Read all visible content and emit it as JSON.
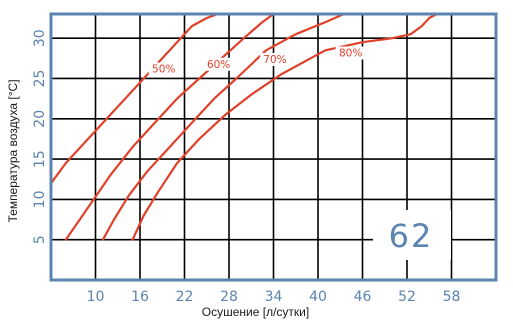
{
  "chart_data": {
    "type": "line",
    "xlabel": "Осушение [л/сутки]",
    "ylabel": "Температура воздуха [°C]",
    "xlim": [
      4,
      64
    ],
    "ylim": [
      0,
      33
    ],
    "x_ticks": [
      "10",
      "16",
      "22",
      "28",
      "34",
      "40",
      "46",
      "52",
      "58"
    ],
    "y_ticks": [
      "5",
      "10",
      "15",
      "20",
      "25",
      "30"
    ],
    "annotation": "62",
    "series_color": "#e0412b",
    "grid_color": "#000000",
    "series": [
      {
        "name": "50%",
        "x": [
          4,
          6,
          9,
          12,
          15,
          18,
          20.5,
          23,
          25,
          26.5
        ],
        "y": [
          12,
          14.5,
          17.5,
          20.5,
          23.5,
          26.5,
          29,
          31.5,
          32.5,
          33
        ]
      },
      {
        "name": "60%",
        "x": [
          6,
          9,
          12,
          15,
          18,
          21,
          24,
          27,
          30,
          32.5,
          34
        ],
        "y": [
          5,
          9,
          13,
          16.5,
          19.5,
          22.5,
          25,
          27.5,
          30,
          32,
          33
        ]
      },
      {
        "name": "70%",
        "x": [
          11,
          12.5,
          14.5,
          17,
          20,
          23,
          26,
          29,
          33,
          37,
          41,
          43.5
        ],
        "y": [
          5,
          7.5,
          10.5,
          13.5,
          16.5,
          19.5,
          22.5,
          25,
          28.5,
          30.5,
          32,
          33
        ]
      },
      {
        "name": "80%",
        "x": [
          15,
          16.5,
          18.5,
          21,
          24,
          27.5,
          31,
          35,
          39,
          41,
          46,
          50,
          52.5,
          54,
          55,
          56
        ],
        "y": [
          5,
          8,
          11,
          14.5,
          17.5,
          20.5,
          23,
          25.5,
          27.5,
          28.5,
          29.5,
          30,
          30.5,
          31.5,
          32.5,
          33
        ]
      }
    ],
    "series_labels": [
      {
        "text": "50%",
        "x": 19.2,
        "y": 26.1
      },
      {
        "text": "60%",
        "x": 26.6,
        "y": 26.7
      },
      {
        "text": "70%",
        "x": 34.2,
        "y": 27.3
      },
      {
        "text": "80%",
        "x": 44.4,
        "y": 28.1
      }
    ]
  }
}
